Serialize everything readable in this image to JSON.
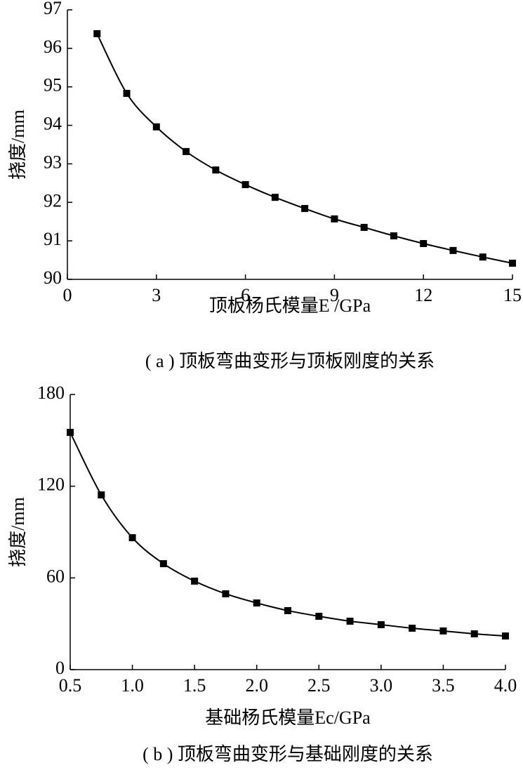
{
  "chart_data": [
    {
      "type": "line",
      "ylabel": "挠度/mm",
      "xlabel": "顶板杨氏模量E /GPa",
      "caption": "( a ) 顶板弯曲变形与顶板刚度的关系",
      "x": [
        1,
        2,
        3,
        4,
        5,
        6,
        7,
        8,
        9,
        10,
        11,
        12,
        13,
        14,
        15
      ],
      "series": [
        {
          "name": "挠度",
          "color": "#000000",
          "values": [
            96.38,
            94.83,
            93.96,
            93.32,
            92.84,
            92.46,
            92.13,
            91.84,
            91.57,
            91.35,
            91.13,
            90.93,
            90.75,
            90.58,
            90.42
          ]
        }
      ],
      "xlim": [
        0,
        15
      ],
      "xticks": [
        0,
        3,
        6,
        9,
        12,
        15
      ],
      "ylim": [
        90,
        97
      ],
      "yticks": [
        90,
        91,
        92,
        93,
        94,
        95,
        96,
        97
      ]
    },
    {
      "type": "line",
      "ylabel": "挠度/mm",
      "xlabel": "基础杨氏模量Ec/GPa",
      "caption": "( b ) 顶板弯曲变形与基础刚度的关系",
      "x": [
        0.5,
        0.75,
        1.0,
        1.25,
        1.5,
        1.75,
        2.0,
        2.25,
        2.5,
        2.75,
        3.0,
        3.25,
        3.5,
        3.75,
        4.0
      ],
      "series": [
        {
          "name": "挠度",
          "color": "#000000",
          "values": [
            155.2,
            114.3,
            86.3,
            69.3,
            57.9,
            49.6,
            43.6,
            38.6,
            34.9,
            31.7,
            29.4,
            27.1,
            25.3,
            23.4,
            22.0
          ]
        }
      ],
      "xlim": [
        0.5,
        4.0
      ],
      "xticks": [
        0.5,
        {
          "value": 1.0,
          "label": "1.0"
        },
        1.5,
        {
          "value": 2.0,
          "label": "2.0"
        },
        2.5,
        {
          "value": 3.0,
          "label": "3.0"
        },
        3.5,
        {
          "value": 4.0,
          "label": "4.0"
        }
      ],
      "ylim": [
        0,
        180
      ],
      "yticks": [
        0,
        60,
        120,
        180
      ]
    }
  ]
}
